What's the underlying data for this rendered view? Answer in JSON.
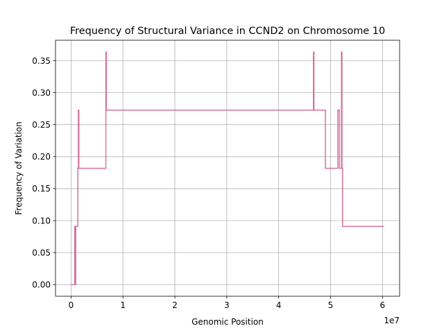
{
  "chart_data": {
    "type": "line",
    "title": "Frequency of Structural Variance in CCND2 on Chromosome 10",
    "xlabel": "Genomic Position",
    "ylabel": "Frequency of Variation",
    "x_offset_label": "1e7",
    "xlim": [
      -3000000,
      63300000
    ],
    "ylim": [
      -0.0182,
      0.382
    ],
    "grid": true,
    "color": "#d6729c",
    "x_ticks": [
      {
        "value": 0,
        "label": "0"
      },
      {
        "value": 10000000,
        "label": "1"
      },
      {
        "value": 20000000,
        "label": "2"
      },
      {
        "value": 30000000,
        "label": "3"
      },
      {
        "value": 40000000,
        "label": "4"
      },
      {
        "value": 50000000,
        "label": "5"
      },
      {
        "value": 60000000,
        "label": "6"
      }
    ],
    "y_ticks": [
      {
        "value": 0.0,
        "label": "0.00"
      },
      {
        "value": 0.05,
        "label": "0.05"
      },
      {
        "value": 0.1,
        "label": "0.10"
      },
      {
        "value": 0.15,
        "label": "0.15"
      },
      {
        "value": 0.2,
        "label": "0.20"
      },
      {
        "value": 0.25,
        "label": "0.25"
      },
      {
        "value": 0.3,
        "label": "0.30"
      },
      {
        "value": 0.35,
        "label": "0.35"
      }
    ],
    "series": [
      {
        "x": [
          0,
          700000,
          700000,
          800000,
          800000,
          900000,
          900000,
          1300000,
          1300000,
          1400000,
          1400000,
          1500000,
          1500000,
          6700000,
          6700000,
          6800000,
          6800000,
          46700000,
          46700000,
          46800000,
          46800000,
          49000000,
          49000000,
          51400000,
          51400000,
          51700000,
          51700000,
          52100000,
          52100000,
          52200000,
          52200000,
          52300000,
          52300000,
          60300000
        ],
        "y": [
          0.0,
          0.0,
          0.0909,
          0.0909,
          0.0,
          0.0,
          0.0909,
          0.0909,
          0.1818,
          0.1818,
          0.2727,
          0.2727,
          0.1818,
          0.1818,
          0.3636,
          0.3636,
          0.2727,
          0.2727,
          0.3636,
          0.3636,
          0.2727,
          0.2727,
          0.1818,
          0.1818,
          0.2727,
          0.2727,
          0.1818,
          0.1818,
          0.3636,
          0.3636,
          0.1818,
          0.1818,
          0.0909,
          0.0909
        ]
      }
    ]
  }
}
